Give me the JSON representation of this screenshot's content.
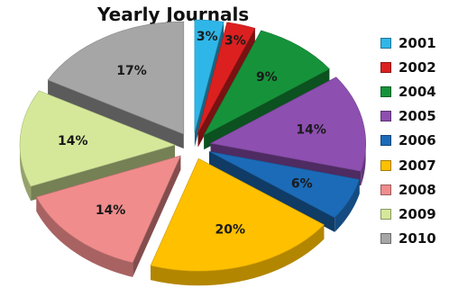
{
  "chart_data": {
    "type": "pie",
    "title": "Yearly Journals",
    "legend_position": "right",
    "exploded": true,
    "style": "3d",
    "categories": [
      "2001",
      "2002",
      "2004",
      "2005",
      "2006",
      "2007",
      "2008",
      "2009",
      "2010"
    ],
    "values": [
      3,
      3,
      9,
      14,
      6,
      20,
      14,
      14,
      17
    ],
    "labels": [
      "3%",
      "3%",
      "9%",
      "14%",
      "6%",
      "20%",
      "14%",
      "14%",
      "17%"
    ],
    "colors": [
      "#2fb6e8",
      "#dc2020",
      "#16933a",
      "#8d4fb0",
      "#1c6bb8",
      "#ffc000",
      "#f08c8c",
      "#d5e89a",
      "#a6a6a6"
    ]
  }
}
